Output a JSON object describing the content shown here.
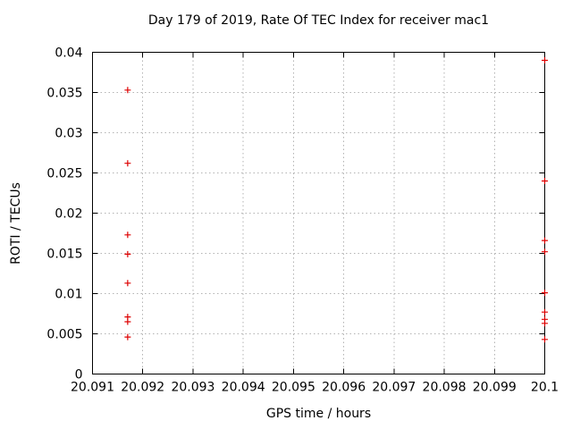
{
  "chart_data": {
    "type": "scatter",
    "title": "Day 179 of 2019, Rate Of TEC Index for receiver mac1",
    "xlabel": "GPS time / hours",
    "ylabel": "ROTI / TECUs",
    "xlim": [
      20.091,
      20.1
    ],
    "ylim": [
      0,
      0.04
    ],
    "grid": true,
    "legend": "none",
    "xticks": {
      "values": [
        20.091,
        20.092,
        20.093,
        20.094,
        20.095,
        20.096,
        20.097,
        20.098,
        20.099,
        20.1
      ],
      "labels": [
        "20.091",
        "20.092",
        "20.093",
        "20.094",
        "20.095",
        "20.096",
        "20.097",
        "20.098",
        "20.099",
        "20.1"
      ]
    },
    "yticks": {
      "values": [
        0,
        0.005,
        0.01,
        0.015,
        0.02,
        0.025,
        0.03,
        0.035,
        0.04
      ],
      "labels": [
        "0",
        "0.005",
        "0.01",
        "0.015",
        "0.02",
        "0.025",
        "0.03",
        "0.035",
        "0.04"
      ]
    },
    "series": [
      {
        "name": "ROTI",
        "marker": "plus",
        "color": "#dd0000",
        "points": [
          [
            20.0917,
            0.0353
          ],
          [
            20.0917,
            0.0262
          ],
          [
            20.0917,
            0.0173
          ],
          [
            20.0917,
            0.0149
          ],
          [
            20.0917,
            0.0113
          ],
          [
            20.0917,
            0.0071
          ],
          [
            20.0917,
            0.0065
          ],
          [
            20.0917,
            0.0046
          ],
          [
            20.1,
            0.039
          ],
          [
            20.1,
            0.024
          ],
          [
            20.1,
            0.0166
          ],
          [
            20.1,
            0.0152
          ],
          [
            20.1,
            0.0101
          ],
          [
            20.1,
            0.0077
          ],
          [
            20.1,
            0.0068
          ],
          [
            20.1,
            0.0063
          ],
          [
            20.1,
            0.0043
          ]
        ]
      }
    ]
  },
  "style": {
    "background": "#ffffff",
    "axis_color": "#000000",
    "grid_color": "#b3b3b3",
    "text_color": "#000000",
    "marker_color": "#dd0000"
  }
}
